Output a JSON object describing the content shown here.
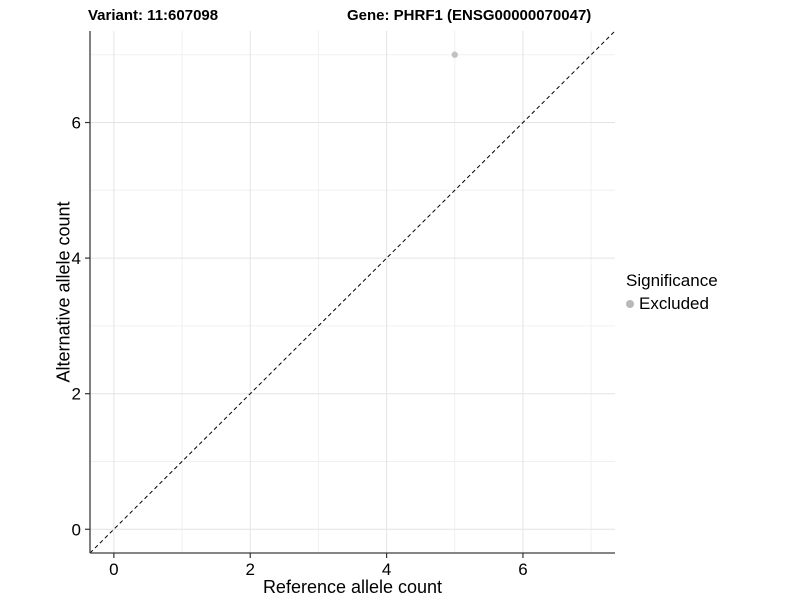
{
  "chart_data": {
    "type": "scatter",
    "titles": {
      "left": "Variant: 11:607098",
      "right": "Gene: PHRF1 (ENSG00000070047)"
    },
    "xlabel": "Reference allele count",
    "ylabel": "Alternative allele count",
    "xlim": [
      -0.35,
      7.35
    ],
    "ylim": [
      -0.35,
      7.35
    ],
    "x_ticks": [
      0,
      2,
      4,
      6
    ],
    "y_ticks": [
      0,
      2,
      4,
      6
    ],
    "x_minor_ticks": [
      1,
      3,
      5,
      7
    ],
    "y_minor_ticks": [
      1,
      3,
      5,
      7
    ],
    "grid": "on",
    "legend": {
      "title": "Significance",
      "position": "right",
      "entries": [
        {
          "label": "Excluded",
          "color": "#b9b9b9"
        }
      ]
    },
    "reference_line": {
      "type": "identity",
      "style": "dashed",
      "color": "#000000"
    },
    "series": [
      {
        "name": "Excluded",
        "color": "#c2c2c2",
        "points": [
          {
            "x": 5,
            "y": 7
          }
        ]
      }
    ]
  },
  "colors": {
    "grid_major": "#e4e4e4",
    "grid_minor": "#f0f0f0",
    "axis_line": "#3c3c3c",
    "tick_mark": "#333333",
    "background": "#ffffff"
  }
}
